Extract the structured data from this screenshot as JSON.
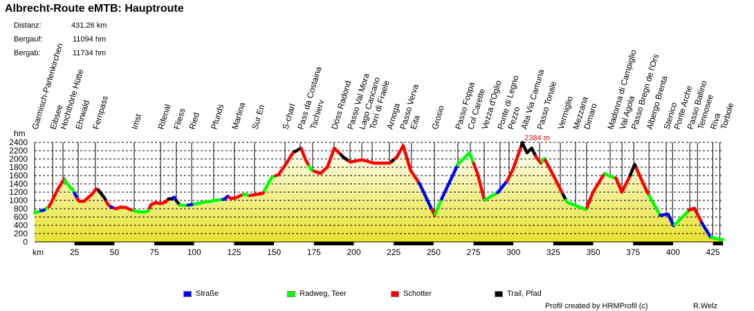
{
  "header": {
    "title": "Albrecht-Route eMTB: Hauptroute",
    "stats": [
      {
        "label": "Distanz:",
        "value": "431,26 km"
      },
      {
        "label": "Bergauf:",
        "value": "11094 hm"
      },
      {
        "label": "Bergab:",
        "value": "11734 hm"
      }
    ]
  },
  "chart_data": {
    "type": "area",
    "ylabel": "hm",
    "xlabel": "km",
    "xlim": [
      0,
      431.26
    ],
    "ylim": [
      0,
      2400
    ],
    "yticks": [
      0,
      200,
      400,
      600,
      800,
      1000,
      1200,
      1400,
      1600,
      1800,
      2000,
      2200,
      2400
    ],
    "xticks": [
      25,
      50,
      75,
      100,
      125,
      150,
      175,
      200,
      225,
      250,
      275,
      300,
      325,
      350,
      375,
      400,
      425
    ],
    "grid": true,
    "max_label": {
      "km": 305.6,
      "elev": 2384,
      "text": "2384 m",
      "color": "#ff0000"
    },
    "profile": [
      [
        0,
        700
      ],
      [
        3,
        740
      ],
      [
        6,
        770
      ],
      [
        9,
        850
      ],
      [
        11,
        1000
      ],
      [
        13,
        1150
      ],
      [
        15,
        1300
      ],
      [
        17,
        1420
      ],
      [
        18.5,
        1520
      ],
      [
        20,
        1430
      ],
      [
        22,
        1330
      ],
      [
        24,
        1250
      ],
      [
        26,
        1100
      ],
      [
        28,
        980
      ],
      [
        31,
        980
      ],
      [
        33,
        1050
      ],
      [
        36,
        1150
      ],
      [
        38.5,
        1280
      ],
      [
        40,
        1250
      ],
      [
        42,
        1150
      ],
      [
        44,
        1050
      ],
      [
        46,
        900
      ],
      [
        48,
        840
      ],
      [
        51,
        800
      ],
      [
        54,
        840
      ],
      [
        57,
        830
      ],
      [
        60,
        780
      ],
      [
        63,
        740
      ],
      [
        66,
        720
      ],
      [
        69,
        720
      ],
      [
        71,
        740
      ],
      [
        73,
        900
      ],
      [
        76,
        950
      ],
      [
        79,
        920
      ],
      [
        82,
        960
      ],
      [
        84,
        1040
      ],
      [
        86,
        1040
      ],
      [
        87.5,
        1080
      ],
      [
        89,
        980
      ],
      [
        91,
        890
      ],
      [
        95,
        880
      ],
      [
        100,
        910
      ],
      [
        105,
        950
      ],
      [
        110,
        980
      ],
      [
        115,
        1010
      ],
      [
        119,
        1030
      ],
      [
        121,
        1100
      ],
      [
        123,
        1050
      ],
      [
        126,
        1060
      ],
      [
        129,
        1120
      ],
      [
        132,
        1150
      ],
      [
        134.3,
        1115
      ],
      [
        143,
        1170
      ],
      [
        148.6,
        1560
      ],
      [
        152.8,
        1620
      ],
      [
        156.8,
        1840
      ],
      [
        161.9,
        2150
      ],
      [
        166.9,
        2260
      ],
      [
        169.8,
        1980
      ],
      [
        173.4,
        1730
      ],
      [
        179.2,
        1650
      ],
      [
        183.5,
        1810
      ],
      [
        187.8,
        2260
      ],
      [
        193.6,
        2040
      ],
      [
        197.9,
        1925
      ],
      [
        205.2,
        1980
      ],
      [
        212.4,
        1900
      ],
      [
        222.5,
        1900
      ],
      [
        226.8,
        2040
      ],
      [
        230.9,
        2320
      ],
      [
        235.5,
        1730
      ],
      [
        241.3,
        1395
      ],
      [
        248.5,
        810
      ],
      [
        250.7,
        640
      ],
      [
        254.3,
        980
      ],
      [
        265.2,
        1870
      ],
      [
        272.4,
        2150
      ],
      [
        277.5,
        1650
      ],
      [
        281.8,
        1005
      ],
      [
        290.4,
        1200
      ],
      [
        296.2,
        1480
      ],
      [
        299.8,
        1760
      ],
      [
        305.6,
        2384
      ],
      [
        308.5,
        2150
      ],
      [
        311.4,
        2260
      ],
      [
        314.3,
        2040
      ],
      [
        317.2,
        1900
      ],
      [
        319.4,
        2010
      ],
      [
        325.2,
        1590
      ],
      [
        331,
        1145
      ],
      [
        333.9,
        950
      ],
      [
        339.7,
        865
      ],
      [
        345.5,
        780
      ],
      [
        349.8,
        1200
      ],
      [
        357,
        1650
      ],
      [
        360,
        1590
      ],
      [
        364.3,
        1535
      ],
      [
        367.9,
        1200
      ],
      [
        373,
        1590
      ],
      [
        375.9,
        1870
      ],
      [
        383.1,
        1255
      ],
      [
        391.8,
        640
      ],
      [
        396.8,
        670
      ],
      [
        400.4,
        390
      ],
      [
        410.5,
        780
      ],
      [
        413.4,
        810
      ],
      [
        417.8,
        475
      ],
      [
        423.6,
        110
      ],
      [
        430,
        55
      ],
      [
        431.26,
        55
      ]
    ],
    "surface_segments": [
      [
        0,
        9,
        "radweg"
      ],
      [
        4,
        6,
        "strasse"
      ],
      [
        9,
        19,
        "schotter"
      ],
      [
        19,
        25,
        "radweg"
      ],
      [
        25,
        27,
        "strasse"
      ],
      [
        27,
        40,
        "schotter"
      ],
      [
        40,
        45,
        "trail"
      ],
      [
        45,
        48,
        "schotter"
      ],
      [
        48,
        50,
        "strasse"
      ],
      [
        50,
        62,
        "schotter"
      ],
      [
        62,
        72,
        "radweg"
      ],
      [
        72,
        84,
        "schotter"
      ],
      [
        84,
        87,
        "trail"
      ],
      [
        87,
        89,
        "strasse"
      ],
      [
        89,
        91,
        "trail"
      ],
      [
        91,
        96,
        "radweg"
      ],
      [
        96,
        100,
        "strasse"
      ],
      [
        100,
        118,
        "radweg"
      ],
      [
        118,
        122,
        "strasse"
      ],
      [
        122,
        131,
        "schotter"
      ],
      [
        131,
        135,
        "radweg"
      ],
      [
        135,
        144,
        "schotter"
      ],
      [
        144,
        151,
        "radweg"
      ],
      [
        151,
        163,
        "schotter"
      ],
      [
        163,
        167,
        "trail"
      ],
      [
        167,
        172,
        "schotter"
      ],
      [
        172,
        175,
        "radweg"
      ],
      [
        175,
        192,
        "schotter"
      ],
      [
        192,
        197,
        "trail"
      ],
      [
        197,
        224,
        "schotter"
      ],
      [
        224,
        226,
        "trail"
      ],
      [
        226,
        241,
        "schotter"
      ],
      [
        241,
        249,
        "strasse"
      ],
      [
        249,
        251,
        "schotter"
      ],
      [
        251,
        255,
        "radweg"
      ],
      [
        255,
        265,
        "strasse"
      ],
      [
        265,
        275,
        "radweg"
      ],
      [
        275,
        282,
        "schotter"
      ],
      [
        282,
        290,
        "radweg"
      ],
      [
        290,
        296,
        "strasse"
      ],
      [
        296,
        305,
        "schotter"
      ],
      [
        305,
        314,
        "trail"
      ],
      [
        314,
        318,
        "schotter"
      ],
      [
        318,
        320,
        "radweg"
      ],
      [
        320,
        331,
        "schotter"
      ],
      [
        331,
        333,
        "trail"
      ],
      [
        333,
        346,
        "radweg"
      ],
      [
        346,
        357,
        "schotter"
      ],
      [
        357,
        364,
        "radweg"
      ],
      [
        364,
        373,
        "schotter"
      ],
      [
        373,
        377,
        "trail"
      ],
      [
        377,
        385,
        "schotter"
      ],
      [
        385,
        392,
        "radweg"
      ],
      [
        392,
        401,
        "strasse"
      ],
      [
        401,
        410,
        "radweg"
      ],
      [
        410,
        418,
        "schotter"
      ],
      [
        418,
        424,
        "strasse"
      ],
      [
        424,
        431.26,
        "radweg"
      ]
    ],
    "waypoints": [
      {
        "name": "Garmisch-Partenkirchen",
        "km": 0
      },
      {
        "name": "Eibsee",
        "km": 11.3
      },
      {
        "name": "Hochthörle Hütte",
        "km": 17.8
      },
      {
        "name": "Ehrwald",
        "km": 27.3
      },
      {
        "name": "Fernpass",
        "km": 38.1
      },
      {
        "name": "Imst",
        "km": 62.4
      },
      {
        "name": "Rifenal",
        "km": 78.9
      },
      {
        "name": "Fliess",
        "km": 88.8
      },
      {
        "name": "Ried",
        "km": 98.4
      },
      {
        "name": "Pfunds",
        "km": 112.2
      },
      {
        "name": "Martina",
        "km": 125.2
      },
      {
        "name": "Sur En",
        "km": 137.8
      },
      {
        "name": "S-charl",
        "km": 156.9
      },
      {
        "name": "Pass da Costaina",
        "km": 166.4
      },
      {
        "name": "Tschierv",
        "km": 174.2
      },
      {
        "name": "Döss Radond",
        "km": 187.6
      },
      {
        "name": "Passo Val Mora",
        "km": 197.6
      },
      {
        "name": "Lago Cancano",
        "km": 205
      },
      {
        "name": "Torri di Fraele",
        "km": 211.5
      },
      {
        "name": "Arnoga",
        "km": 222.3
      },
      {
        "name": "Passo Verva",
        "km": 230.5
      },
      {
        "name": "Eita",
        "km": 236.1
      },
      {
        "name": "Grosio",
        "km": 250.5
      },
      {
        "name": "Passo Foppa",
        "km": 265.2
      },
      {
        "name": "Col Carette",
        "km": 273
      },
      {
        "name": "Vezza d'Oglio",
        "km": 281.7
      },
      {
        "name": "Ponte di Legno",
        "km": 291.6
      },
      {
        "name": "Pezzo",
        "km": 297.3
      },
      {
        "name": "Alta Via Camuna",
        "km": 306.4
      },
      {
        "name": "Passo Tonale",
        "km": 316.4
      },
      {
        "name": "Vermiglio",
        "km": 329.4
      },
      {
        "name": "Mezzana",
        "km": 338.9
      },
      {
        "name": "Dimaro",
        "km": 345.8
      },
      {
        "name": "Madonna di Campiglio",
        "km": 360.6
      },
      {
        "name": "Val Agola",
        "km": 368
      },
      {
        "name": "Passo Bregn de l'Ors",
        "km": 375.4
      },
      {
        "name": "Albergo Brenta",
        "km": 384.9
      },
      {
        "name": "Stenico",
        "km": 395.7
      },
      {
        "name": "Ponte Arche",
        "km": 399.7
      },
      {
        "name": "Passo Ballino",
        "km": 410.5
      },
      {
        "name": "Tennosee",
        "km": 415.3
      },
      {
        "name": "Riva",
        "km": 424.9
      },
      {
        "name": "Torbole",
        "km": 429.3
      }
    ],
    "legend": [
      {
        "key": "strasse",
        "label": "Straße",
        "color": "#0000ff"
      },
      {
        "key": "radweg",
        "label": "Radweg, Teer",
        "color": "#00ff00"
      },
      {
        "key": "schotter",
        "label": "Schotter",
        "color": "#ff0000"
      },
      {
        "key": "trail",
        "label": "Trail, Pfad",
        "color": "#000000"
      }
    ],
    "fill_colors": {
      "top": "#ffffff",
      "bottom": "#e8e22e"
    }
  },
  "footer": {
    "credit": "Profil created by HRMProfil (c)",
    "author": "R.Welz"
  }
}
